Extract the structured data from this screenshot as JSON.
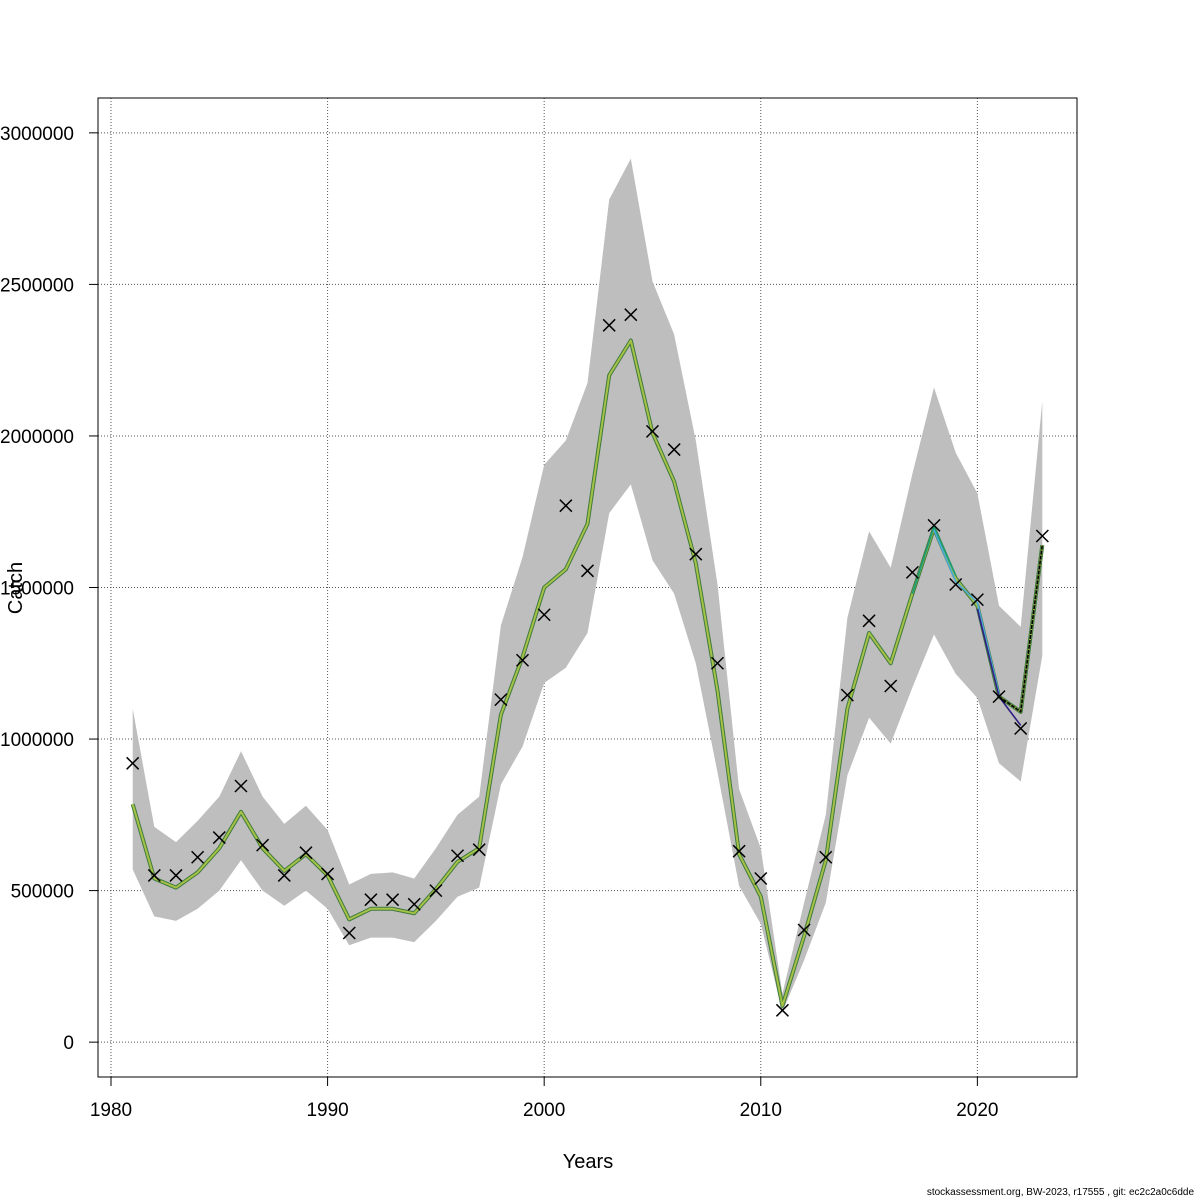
{
  "chart_data": {
    "type": "line",
    "title": "",
    "xlabel": "Years",
    "ylabel": "Catch",
    "xlim": [
      1979.4,
      2024.6
    ],
    "ylim": [
      -115000,
      3115000
    ],
    "x_ticks": [
      1980,
      1990,
      2000,
      2010,
      2020
    ],
    "y_ticks": [
      0,
      500000,
      1000000,
      1500000,
      2000000,
      2500000,
      3000000
    ],
    "grid": true,
    "years": [
      1981,
      1982,
      1983,
      1984,
      1985,
      1986,
      1987,
      1988,
      1989,
      1990,
      1991,
      1992,
      1993,
      1994,
      1995,
      1996,
      1997,
      1998,
      1999,
      2000,
      2001,
      2002,
      2003,
      2004,
      2005,
      2006,
      2007,
      2008,
      2009,
      2010,
      2011,
      2012,
      2013,
      2014,
      2015,
      2016,
      2017,
      2018,
      2019,
      2020,
      2021,
      2022,
      2023
    ],
    "observed": [
      920000,
      550000,
      550000,
      610000,
      675000,
      845000,
      650000,
      550000,
      625000,
      555000,
      360000,
      470000,
      470000,
      455000,
      500000,
      615000,
      635000,
      1130000,
      1260000,
      1410000,
      1770000,
      1555000,
      2365000,
      2400000,
      2015000,
      1955000,
      1610000,
      1250000,
      630000,
      540000,
      105000,
      370000,
      610000,
      1145000,
      1390000,
      1175000,
      1550000,
      1705000,
      1510000,
      1460000,
      1140000,
      1035000,
      1670000
    ],
    "estimate": [
      785000,
      540000,
      510000,
      560000,
      640000,
      760000,
      640000,
      565000,
      620000,
      550000,
      405000,
      440000,
      440000,
      425000,
      505000,
      595000,
      640000,
      1080000,
      1270000,
      1500000,
      1560000,
      1710000,
      2200000,
      2315000,
      2010000,
      1850000,
      1580000,
      1160000,
      620000,
      480000,
      120000,
      350000,
      600000,
      1100000,
      1350000,
      1250000,
      1480000,
      1695000,
      1530000,
      1440000,
      1140000,
      1090000,
      1640000
    ],
    "ci_lower": [
      570000,
      415000,
      400000,
      440000,
      500000,
      600000,
      500000,
      450000,
      500000,
      440000,
      320000,
      345000,
      345000,
      330000,
      400000,
      480000,
      510000,
      850000,
      975000,
      1185000,
      1235000,
      1350000,
      1745000,
      1840000,
      1590000,
      1480000,
      1250000,
      890000,
      515000,
      390000,
      100000,
      270000,
      460000,
      880000,
      1070000,
      985000,
      1170000,
      1345000,
      1215000,
      1135000,
      920000,
      860000,
      1275000
    ],
    "ci_upper": [
      1100000,
      710000,
      660000,
      730000,
      810000,
      960000,
      810000,
      720000,
      780000,
      700000,
      520000,
      555000,
      560000,
      540000,
      640000,
      750000,
      810000,
      1375000,
      1600000,
      1905000,
      1985000,
      2175000,
      2780000,
      2915000,
      2510000,
      2335000,
      1985000,
      1510000,
      835000,
      640000,
      160000,
      460000,
      750000,
      1400000,
      1685000,
      1565000,
      1875000,
      2160000,
      1945000,
      1810000,
      1440000,
      1370000,
      2115000
    ],
    "retro_series": [
      {
        "color": "#1a9e77",
        "values": [
          [
            2017,
            1480000
          ],
          [
            2018,
            1700000
          ],
          [
            2019,
            1540000
          ]
        ]
      },
      {
        "color": "#4daad8",
        "values": [
          [
            2018,
            1690000
          ],
          [
            2019,
            1520000
          ],
          [
            2020,
            1450000
          ],
          [
            2021,
            1150000
          ]
        ]
      },
      {
        "color": "#312182",
        "values": [
          [
            2020,
            1430000
          ],
          [
            2021,
            1140000
          ],
          [
            2022,
            1045000
          ]
        ]
      },
      {
        "color": "#000000",
        "values": [
          [
            2021,
            1140000
          ],
          [
            2022,
            1090000
          ],
          [
            2023,
            1640000
          ]
        ]
      }
    ],
    "colors": {
      "ci_band": "#bebebe",
      "estimate_outer": "#3f7a3f",
      "estimate_inner": "#a6c246",
      "marker": "#000000"
    }
  },
  "footer": "stockassessment.org, BW-2023, r17555 , git: ec2c2a0c6dde"
}
